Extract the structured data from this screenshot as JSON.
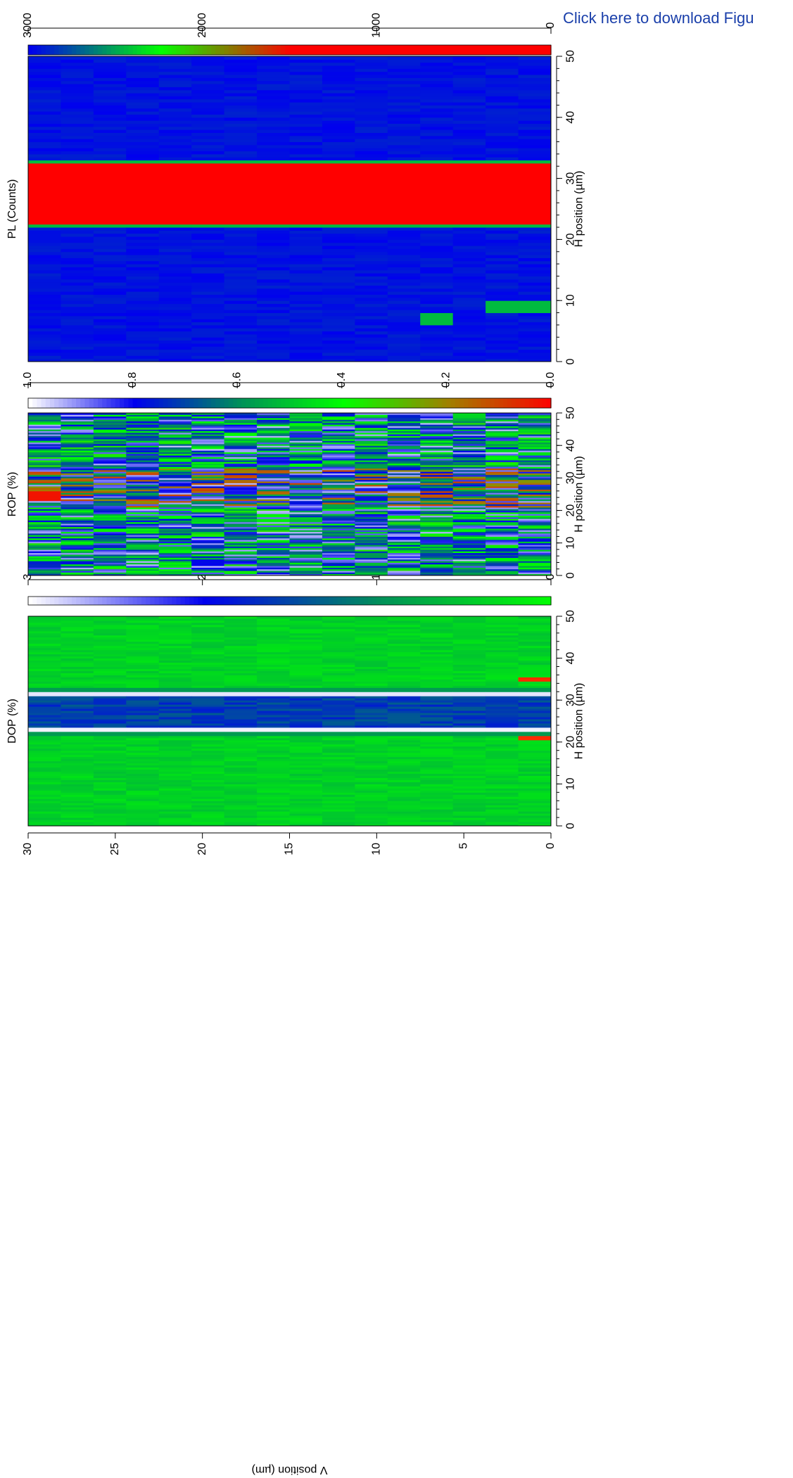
{
  "header": {
    "download_link": "Click here to download Figu"
  },
  "chart_data": [
    {
      "type": "heatmap",
      "title": "DOP (%)",
      "xlabel": "H position (µm)",
      "ylabel": "V position (µm)",
      "xlim": [
        0,
        50
      ],
      "ylim": [
        0,
        30
      ],
      "x_ticks": [
        "0",
        "10",
        "20",
        "30",
        "40",
        "50"
      ],
      "y_ticks": [
        "0",
        "5",
        "10",
        "15",
        "20",
        "25",
        "30"
      ],
      "colorbar": {
        "range": [
          0,
          3
        ],
        "ticks": [
          "0",
          "1",
          "2",
          "3"
        ],
        "colors": [
          "#00ff00",
          "#008f5a",
          "#0000ee",
          "#ffffff"
        ]
      },
      "rows": 16,
      "cols": 100,
      "description": "Green background (~0.1–0.5) with a blue band (~1.3–1.7) for H 24–32 µm, bright white edges (~3) near H 22.5–23.5 and H 31–32 µm, red spots at (H 21, V 1) and (H 35, V 1)."
    },
    {
      "type": "heatmap",
      "title": "ROP (%)",
      "xlabel": "H position (µm)",
      "xlim": [
        0,
        50
      ],
      "ylim": [
        0,
        30
      ],
      "x_ticks": [
        "0",
        "10",
        "20",
        "30",
        "40",
        "50"
      ],
      "colorbar": {
        "range": [
          0,
          1.0
        ],
        "ticks": [
          "0.0",
          "0.2",
          "0.4",
          "0.6",
          "0.8",
          "1.0"
        ],
        "colors": [
          "#ff0000",
          "#a08000",
          "#00ff00",
          "#008f5a",
          "#0000ee",
          "#ffffff"
        ]
      },
      "rows": 16,
      "cols": 100,
      "description": "Noisy blue/green stripes across the field (~0.3–0.9), red/orange values (~0.1–0.2) concentrated near H 22–32 µm, strong red block at top (V 28–30, H 23–26)."
    },
    {
      "type": "heatmap",
      "title": "PL (Counts)",
      "xlabel": "H position (µm)",
      "xlim": [
        0,
        50
      ],
      "ylim": [
        0,
        30
      ],
      "x_ticks": [
        "0",
        "10",
        "20",
        "30",
        "40",
        "50"
      ],
      "colorbar": {
        "range": [
          3000,
          0
        ],
        "ticks": [
          "0",
          "1000",
          "2000",
          "3000"
        ],
        "colors": [
          "#ff0000",
          "#ff0000",
          "#ff0000",
          "#00ff00",
          "#0000ee"
        ]
      },
      "rows": 16,
      "cols": 100,
      "description": "Uniform blue (~2800–3000) except a red band (~0–1500) for H 22.5–32.5 µm across all rows, with green edges; small green patches at (H 6–8, V 6–8) and (H 8–10, V 1–3)."
    }
  ]
}
